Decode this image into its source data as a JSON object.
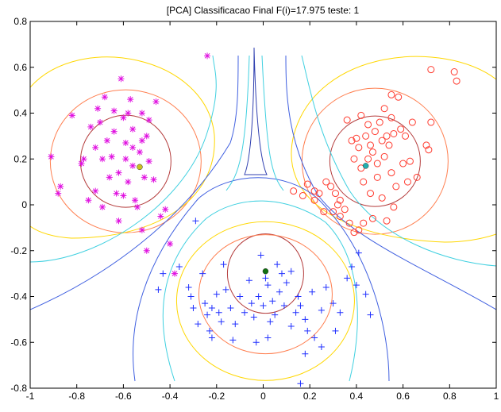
{
  "chart_data": {
    "type": "scatter",
    "title": "[PCA] Classificacao Final F(i)=17.975 teste: 1",
    "xlim": [
      -1,
      1
    ],
    "ylim": [
      -0.8,
      0.8
    ],
    "xticks": [
      "-1",
      "-0.8",
      "-0.6",
      "-0.4",
      "-0.2",
      "0",
      "0.2",
      "0.4",
      "0.6",
      "0.8",
      "1"
    ],
    "yticks": [
      "-0.8",
      "-0.6",
      "-0.4",
      "-0.2",
      "0",
      "0.2",
      "0.4",
      "0.6",
      "0.8"
    ],
    "grid": false,
    "series": [
      {
        "marker": "star",
        "color": "#e010e0",
        "points": [
          [
            -0.91,
            0.21
          ],
          [
            -0.87,
            0.08
          ],
          [
            -0.88,
            0.05
          ],
          [
            -0.82,
            0.39
          ],
          [
            -0.78,
            0.18
          ],
          [
            -0.77,
            0.2
          ],
          [
            -0.74,
            0.34
          ],
          [
            -0.72,
            0.25
          ],
          [
            -0.71,
            0.42
          ],
          [
            -0.7,
            0.36
          ],
          [
            -0.68,
            0.47
          ],
          [
            -0.67,
            0.28
          ],
          [
            -0.66,
            0.12
          ],
          [
            -0.65,
            0.21
          ],
          [
            -0.64,
            0.32
          ],
          [
            -0.63,
            0.05
          ],
          [
            -0.62,
            0.14
          ],
          [
            -0.61,
            0.55
          ],
          [
            -0.6,
            0.38
          ],
          [
            -0.6,
            0.04
          ],
          [
            -0.59,
            0.27
          ],
          [
            -0.58,
            0.1
          ],
          [
            -0.57,
            0.46
          ],
          [
            -0.56,
            0.33
          ],
          [
            -0.56,
            0.17
          ],
          [
            -0.55,
            0.02
          ],
          [
            -0.54,
            -0.01
          ],
          [
            -0.53,
            0.23
          ],
          [
            -0.52,
            0.4
          ],
          [
            -0.51,
            0.12
          ],
          [
            -0.5,
            0.3
          ],
          [
            -0.49,
            0.37
          ],
          [
            -0.49,
            0.19
          ],
          [
            -0.47,
            0.11
          ],
          [
            -0.46,
            0.45
          ],
          [
            -0.44,
            -0.05
          ],
          [
            -0.42,
            -0.02
          ],
          [
            -0.59,
            0.2
          ],
          [
            -0.69,
            -0.01
          ],
          [
            -0.75,
            0.02
          ],
          [
            -0.62,
            -0.07
          ],
          [
            -0.69,
            0.2
          ],
          [
            -0.64,
            0.41
          ],
          [
            -0.58,
            0.4
          ],
          [
            -0.56,
            0.25
          ],
          [
            -0.52,
            -0.11
          ],
          [
            -0.5,
            -0.2
          ],
          [
            -0.4,
            -0.17
          ],
          [
            -0.38,
            -0.3
          ],
          [
            -0.24,
            0.65
          ],
          [
            -0.52,
            0.28
          ],
          [
            -0.72,
            0.06
          ]
        ]
      },
      {
        "marker": "circle",
        "color": "#ff3b2f",
        "points": [
          [
            0.13,
            0.06
          ],
          [
            0.17,
            0.04
          ],
          [
            0.19,
            0.09
          ],
          [
            0.22,
            0.02
          ],
          [
            0.24,
            0.05
          ],
          [
            0.26,
            -0.03
          ],
          [
            0.27,
            0.1
          ],
          [
            0.29,
            0.08
          ],
          [
            0.31,
            0.05
          ],
          [
            0.32,
            0.0
          ],
          [
            0.33,
            0.02
          ],
          [
            0.35,
            -0.02
          ],
          [
            0.37,
            -0.08
          ],
          [
            0.39,
            -0.12
          ],
          [
            0.41,
            -0.11
          ],
          [
            0.43,
            -0.08
          ],
          [
            0.36,
            0.37
          ],
          [
            0.38,
            0.28
          ],
          [
            0.39,
            0.2
          ],
          [
            0.41,
            0.25
          ],
          [
            0.42,
            0.16
          ],
          [
            0.42,
            0.39
          ],
          [
            0.43,
            0.1
          ],
          [
            0.44,
            0.3
          ],
          [
            0.45,
            0.2
          ],
          [
            0.45,
            0.35
          ],
          [
            0.46,
            0.26
          ],
          [
            0.47,
            0.23
          ],
          [
            0.48,
            0.32
          ],
          [
            0.49,
            0.18
          ],
          [
            0.5,
            0.36
          ],
          [
            0.51,
            0.28
          ],
          [
            0.52,
            0.21
          ],
          [
            0.52,
            0.42
          ],
          [
            0.53,
            0.3
          ],
          [
            0.54,
            0.26
          ],
          [
            0.55,
            0.14
          ],
          [
            0.55,
            0.38
          ],
          [
            0.56,
            0.31
          ],
          [
            0.57,
            0.08
          ],
          [
            0.58,
            0.47
          ],
          [
            0.59,
            0.33
          ],
          [
            0.6,
            0.18
          ],
          [
            0.61,
            0.3
          ],
          [
            0.62,
            0.1
          ],
          [
            0.63,
            0.19
          ],
          [
            0.64,
            0.36
          ],
          [
            0.66,
            0.12
          ],
          [
            0.7,
            0.26
          ],
          [
            0.71,
            0.24
          ],
          [
            0.72,
            0.36
          ],
          [
            0.72,
            0.59
          ],
          [
            0.82,
            0.58
          ],
          [
            0.83,
            0.54
          ],
          [
            0.55,
            0.48
          ],
          [
            0.49,
            0.12
          ],
          [
            0.46,
            0.05
          ],
          [
            0.51,
            0.03
          ],
          [
            0.56,
            -0.01
          ],
          [
            0.4,
            0.29
          ],
          [
            0.47,
            -0.06
          ],
          [
            0.53,
            -0.07
          ],
          [
            0.33,
            -0.05
          ],
          [
            0.3,
            -0.03
          ],
          [
            0.22,
            0.06
          ]
        ]
      },
      {
        "marker": "plus",
        "color": "#2030ff",
        "points": [
          [
            0.16,
            -0.78
          ],
          [
            -0.45,
            -0.37
          ],
          [
            -0.43,
            -0.3
          ],
          [
            -0.36,
            -0.27
          ],
          [
            -0.32,
            -0.36
          ],
          [
            -0.31,
            -0.4
          ],
          [
            -0.3,
            -0.45
          ],
          [
            -0.28,
            -0.52
          ],
          [
            -0.26,
            -0.3
          ],
          [
            -0.25,
            -0.43
          ],
          [
            -0.24,
            -0.48
          ],
          [
            -0.23,
            -0.55
          ],
          [
            -0.22,
            -0.45
          ],
          [
            -0.2,
            -0.39
          ],
          [
            -0.19,
            -0.47
          ],
          [
            -0.18,
            -0.51
          ],
          [
            -0.16,
            -0.37
          ],
          [
            -0.14,
            -0.45
          ],
          [
            -0.12,
            -0.52
          ],
          [
            -0.1,
            -0.4
          ],
          [
            -0.08,
            -0.47
          ],
          [
            -0.06,
            -0.33
          ],
          [
            -0.05,
            -0.43
          ],
          [
            -0.04,
            -0.49
          ],
          [
            -0.02,
            -0.4
          ],
          [
            -0.01,
            -0.22
          ],
          [
            0.0,
            -0.44
          ],
          [
            0.01,
            -0.32
          ],
          [
            0.02,
            -0.35
          ],
          [
            0.03,
            -0.51
          ],
          [
            0.04,
            -0.42
          ],
          [
            0.05,
            -0.48
          ],
          [
            0.06,
            -0.26
          ],
          [
            0.07,
            -0.38
          ],
          [
            0.08,
            -0.3
          ],
          [
            0.09,
            -0.44
          ],
          [
            0.1,
            -0.34
          ],
          [
            0.12,
            -0.53
          ],
          [
            0.14,
            -0.47
          ],
          [
            0.15,
            -0.4
          ],
          [
            0.16,
            -0.44
          ],
          [
            0.18,
            -0.5
          ],
          [
            0.19,
            -0.55
          ],
          [
            0.22,
            -0.58
          ],
          [
            0.25,
            -0.62
          ],
          [
            0.27,
            -0.36
          ],
          [
            0.3,
            -0.43
          ],
          [
            0.33,
            -0.47
          ],
          [
            0.36,
            -0.32
          ],
          [
            0.4,
            -0.35
          ],
          [
            0.44,
            -0.39
          ],
          [
            0.46,
            -0.48
          ],
          [
            0.31,
            -0.55
          ],
          [
            0.25,
            -0.46
          ],
          [
            0.18,
            -0.65
          ],
          [
            0.02,
            -0.58
          ],
          [
            -0.13,
            -0.59
          ],
          [
            -0.17,
            -0.26
          ],
          [
            0.21,
            -0.38
          ],
          [
            0.12,
            -0.29
          ],
          [
            -0.03,
            -0.6
          ],
          [
            -0.22,
            -0.58
          ],
          [
            0.38,
            -0.27
          ],
          [
            0.41,
            -0.21
          ],
          [
            -0.29,
            -0.07
          ]
        ]
      }
    ],
    "centroids": [
      {
        "x": -0.53,
        "y": 0.165,
        "color": "#c8c020"
      },
      {
        "x": 0.44,
        "y": 0.17,
        "color": "#20b0b0"
      },
      {
        "x": 0.01,
        "y": -0.29,
        "color": "#107010"
      }
    ]
  }
}
